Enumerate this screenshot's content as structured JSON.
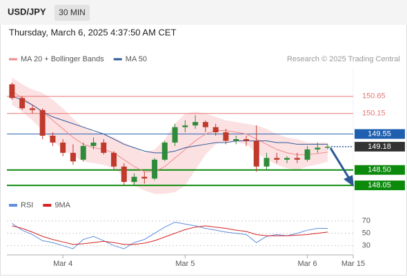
{
  "header": {
    "symbol": "USD/JPY",
    "interval": "30 MIN",
    "timestamp": "Thursday, March 6, 2025 4:37:50 AM CET"
  },
  "chart_data": [
    {
      "type": "candlestick",
      "source": "Research © 2025 Trading Central",
      "x": [
        0,
        1,
        2,
        3,
        4,
        5,
        6,
        7,
        8,
        9,
        10,
        11,
        12,
        13,
        14,
        15,
        16,
        17,
        18,
        19,
        20,
        21,
        22,
        23,
        24,
        25,
        26,
        27,
        28,
        29,
        30,
        31
      ],
      "xlim": [
        -0.5,
        33.5
      ],
      "open": [
        151.0,
        150.6,
        150.3,
        150.25,
        149.5,
        149.3,
        149.0,
        148.8,
        149.2,
        149.3,
        149.0,
        148.6,
        148.15,
        148.3,
        148.25,
        148.8,
        149.3,
        149.75,
        149.8,
        149.9,
        149.75,
        149.6,
        149.35,
        149.4,
        149.35,
        148.6,
        148.85,
        148.8,
        148.85,
        148.8,
        149.1,
        149.15
      ],
      "high": [
        151.05,
        150.65,
        150.4,
        150.3,
        149.6,
        149.4,
        149.25,
        149.3,
        149.45,
        149.4,
        149.05,
        148.7,
        148.4,
        148.45,
        148.85,
        149.35,
        149.85,
        149.95,
        150.1,
        149.95,
        149.85,
        149.7,
        149.5,
        149.5,
        149.8,
        149.0,
        149.0,
        148.9,
        149.0,
        149.2,
        149.3,
        149.25
      ],
      "low": [
        150.55,
        150.25,
        150.15,
        149.4,
        149.2,
        148.9,
        148.65,
        148.75,
        149.1,
        148.95,
        148.5,
        148.05,
        148.05,
        148.1,
        148.2,
        148.75,
        149.2,
        149.6,
        149.7,
        149.6,
        149.5,
        149.25,
        149.25,
        149.2,
        148.45,
        148.5,
        148.7,
        148.7,
        148.7,
        148.75,
        149.0,
        149.1
      ],
      "close": [
        150.6,
        150.3,
        150.25,
        149.5,
        149.3,
        149.0,
        148.75,
        149.2,
        149.3,
        149.0,
        148.6,
        148.15,
        148.3,
        148.25,
        148.8,
        149.3,
        149.75,
        149.8,
        149.9,
        149.75,
        149.6,
        149.35,
        149.4,
        149.35,
        148.6,
        148.85,
        148.8,
        148.85,
        148.8,
        149.1,
        149.15,
        149.18
      ],
      "up_color": "#2e8b3a",
      "down_color": "#c0392b",
      "series": [
        {
          "name": "MA 20 + Bollinger Bands",
          "color": "#f08a8a",
          "band_color": "#fbd9dc",
          "values": [
            150.8,
            150.6,
            150.4,
            150.2,
            149.95,
            149.7,
            149.45,
            149.25,
            149.15,
            149.1,
            149.0,
            148.8,
            148.6,
            148.45,
            148.45,
            148.6,
            148.85,
            149.1,
            149.35,
            149.55,
            149.65,
            149.65,
            149.6,
            149.55,
            149.4,
            149.25,
            149.1,
            149.0,
            148.95,
            148.95,
            148.98,
            149.02
          ],
          "upper": [
            151.2,
            151.0,
            150.85,
            150.75,
            150.55,
            150.3,
            150.0,
            149.75,
            149.6,
            149.55,
            149.45,
            149.3,
            149.15,
            149.0,
            149.1,
            149.4,
            149.85,
            150.15,
            150.2,
            150.15,
            150.05,
            149.95,
            149.9,
            149.85,
            149.8,
            149.7,
            149.55,
            149.45,
            149.4,
            149.3,
            149.3,
            149.3
          ],
          "lower": [
            150.4,
            150.2,
            149.95,
            149.65,
            149.35,
            149.1,
            148.9,
            148.75,
            148.7,
            148.65,
            148.55,
            148.3,
            148.05,
            147.9,
            147.8,
            147.8,
            147.85,
            148.05,
            148.5,
            148.95,
            149.25,
            149.35,
            149.3,
            149.25,
            149.0,
            148.8,
            148.65,
            148.55,
            148.5,
            148.6,
            148.66,
            148.74
          ]
        },
        {
          "name": "MA 50",
          "color": "#2b5797",
          "values": [
            150.65,
            150.55,
            150.4,
            150.2,
            150.05,
            149.95,
            149.85,
            149.75,
            149.65,
            149.55,
            149.4,
            149.25,
            149.15,
            149.05,
            149.0,
            149.0,
            149.05,
            149.15,
            149.2,
            149.25,
            149.3,
            149.3,
            149.35,
            149.35,
            149.35,
            149.35,
            149.3,
            149.3,
            149.25,
            149.25,
            149.25,
            149.25
          ]
        }
      ],
      "ylim": [
        147.73,
        151.25
      ],
      "levels": [
        {
          "value": 150.65,
          "label": "150.65",
          "color": "#e57373",
          "box": false
        },
        {
          "value": 150.15,
          "label": "150.15",
          "color": "#e57373",
          "box": false
        },
        {
          "value": 149.55,
          "label": "149.55",
          "color": "#1f5fb0",
          "box": true
        },
        {
          "value": 148.5,
          "label": "148.50",
          "color": "#0b8a0b",
          "box": true
        },
        {
          "value": 148.05,
          "label": "148.05",
          "color": "#0b8a0b",
          "box": true
        }
      ],
      "last_price": 149.18,
      "last_color": "#333333"
    },
    {
      "type": "line",
      "series": [
        {
          "name": "RSI",
          "color": "#5b8de0",
          "values": [
            66,
            55,
            48,
            38,
            35,
            30,
            25,
            40,
            45,
            38,
            30,
            25,
            35,
            40,
            50,
            60,
            68,
            65,
            62,
            58,
            55,
            52,
            50,
            48,
            35,
            45,
            48,
            46,
            50,
            55,
            58,
            58
          ]
        },
        {
          "name": "9MA",
          "color": "#d62020",
          "values": [
            62,
            58,
            52,
            45,
            40,
            36,
            32,
            33,
            35,
            37,
            35,
            32,
            32,
            34,
            38,
            44,
            50,
            56,
            60,
            62,
            60,
            58,
            55,
            53,
            48,
            46,
            46,
            46,
            47,
            48,
            50,
            52
          ]
        }
      ],
      "ylim": [
        15,
        82
      ],
      "yticks": [
        30,
        50,
        70
      ],
      "xticks": [
        {
          "value": 5,
          "label": "Mar 4"
        },
        {
          "value": 17,
          "label": "Mar 5"
        },
        {
          "value": 29,
          "label": "Mar 6"
        },
        {
          "value": 33.5,
          "label": "Mar 15"
        }
      ]
    }
  ]
}
